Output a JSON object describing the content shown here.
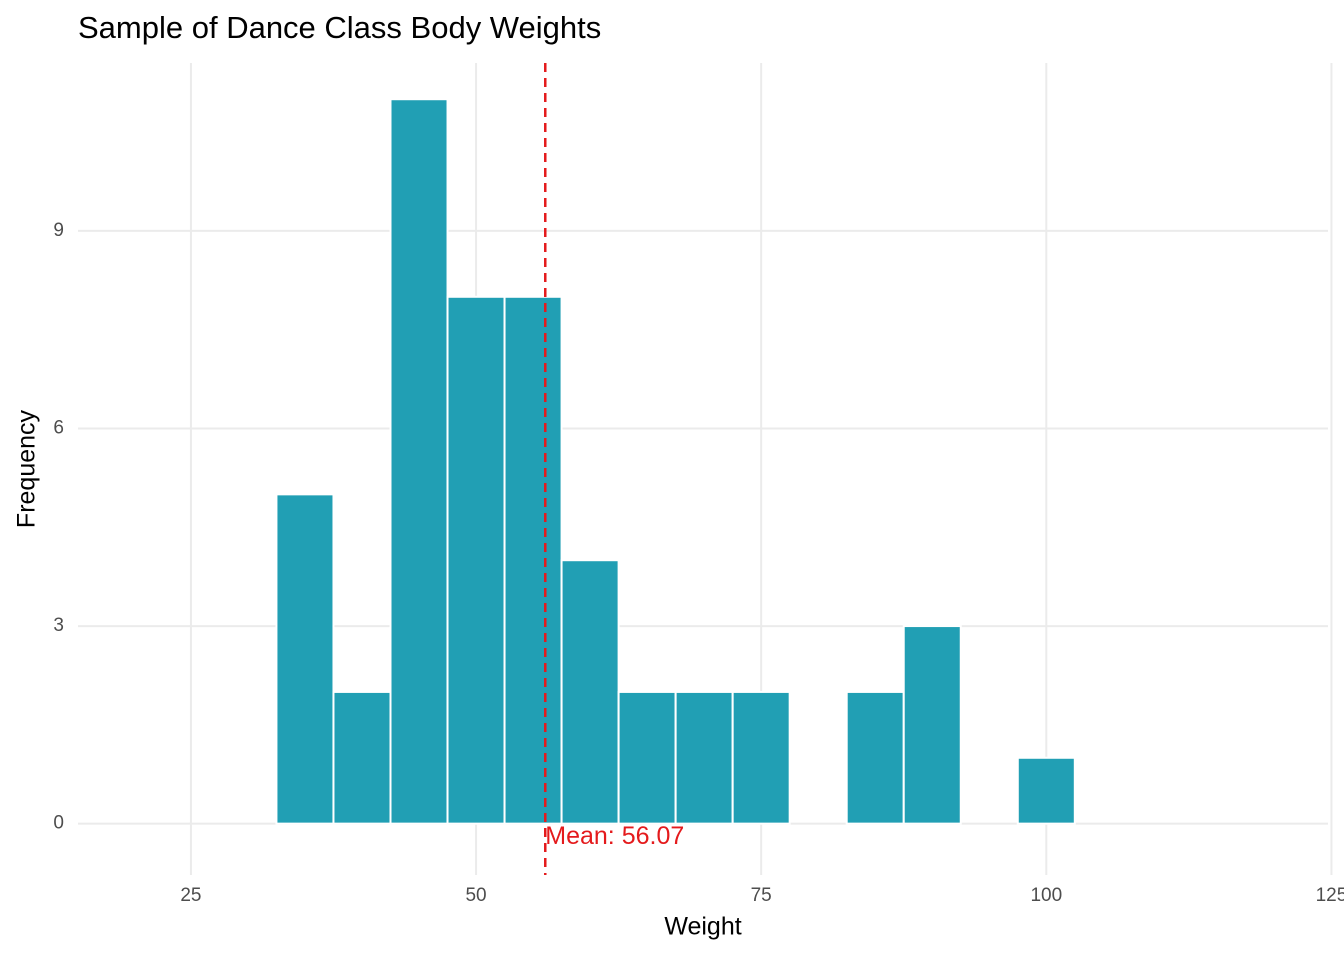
{
  "chart_data": {
    "type": "histogram",
    "title": "Sample of Dance Class Body Weights",
    "x_label": "Weight",
    "y_label": "Frequency",
    "bins": [
      32.5,
      37.5,
      42.5,
      47.5,
      52.5,
      57.5,
      62.5,
      67.5,
      72.5,
      77.5,
      82.5,
      87.5,
      92.5,
      97.5,
      102.5
    ],
    "values": [
      5,
      2,
      11,
      8,
      8,
      4,
      2,
      2,
      2,
      0,
      2,
      3,
      0,
      1
    ],
    "color": "#219fb4",
    "xlim": [
      15.1,
      124.7
    ],
    "xticks": [
      25,
      50,
      75,
      100,
      125
    ],
    "ylim": [
      -0.78,
      11.55
    ],
    "yticks": [
      0,
      3,
      6,
      9
    ],
    "grid": true,
    "mean": 56.07,
    "mean_color": "#e41a1c",
    "mean_label": "Mean: 56.07"
  }
}
